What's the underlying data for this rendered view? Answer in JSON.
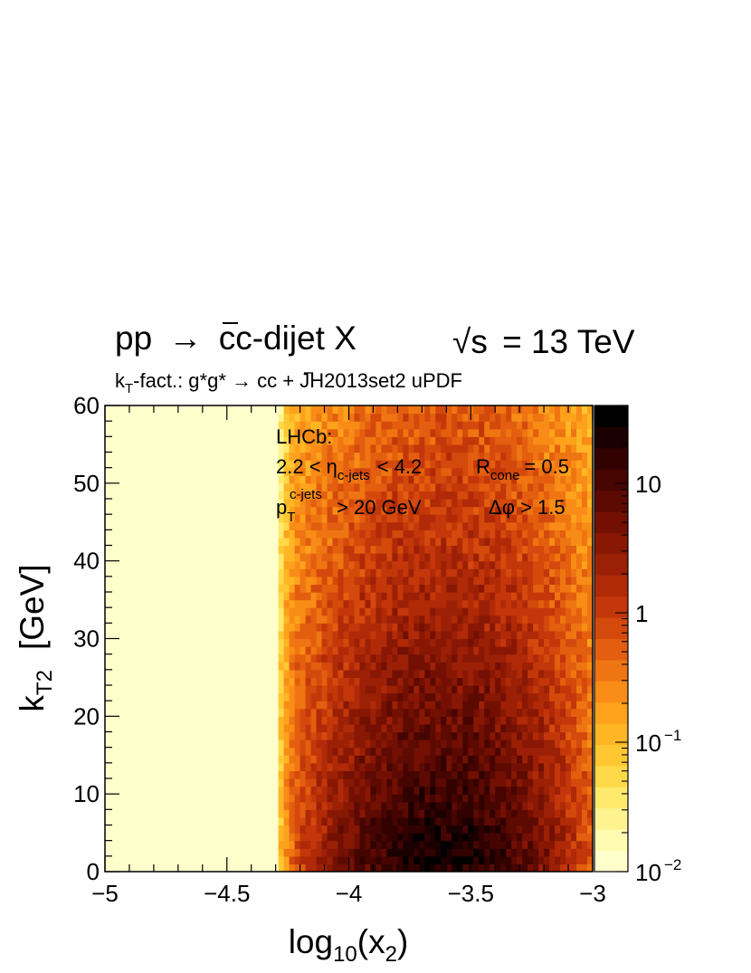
{
  "chart_data": {
    "type": "heatmap",
    "title_parts": {
      "pp": "pp",
      "arrow": "→",
      "c": "c",
      "cbar": "c",
      "suffix": "-dijet X",
      "sqrt": "√",
      "s": "s",
      "energy": "= 13 TeV"
    },
    "subtitle_parts": {
      "k": "k",
      "sub": "T",
      "rest1": "-fact.: g*g* ",
      "arrow": "→",
      "c": " c",
      "cbar": "c",
      "rest2": " + JH2013set2 uPDF"
    },
    "annotations": {
      "line1": "LHCb:",
      "eta_pre": "2.2 < η",
      "eta_sub": "c-jets",
      "eta_post": "< 4.2",
      "rcone": "R",
      "rcone_sub": "cone",
      "rcone_post": "= 0.5",
      "pt": "p",
      "pt_sub": "T",
      "pt_sup": "c-jets",
      "pt_post": "> 20 GeV",
      "dphi": "Δφ > 1.5"
    },
    "xlabel_parts": {
      "pre": "log",
      "sub1": "10",
      "mid": "(x",
      "sub2": "2",
      "post": ")"
    },
    "ylabel_parts": {
      "pre": "k",
      "sub": "T2",
      "post": "[GeV]"
    },
    "xlim": [
      -5,
      -3
    ],
    "ylim": [
      0,
      60
    ],
    "x_ticks": [
      -5,
      -4.5,
      -4,
      -3.5,
      -3
    ],
    "x_tick_labels": [
      "−5",
      "−4.5",
      "−4",
      "−3.5",
      "−3"
    ],
    "y_ticks": [
      0,
      10,
      20,
      30,
      40,
      50,
      60
    ],
    "y_tick_labels": [
      "0",
      "10",
      "20",
      "30",
      "40",
      "50",
      "60"
    ],
    "colorbar": {
      "scale": "log",
      "range": [
        0.01,
        40
      ],
      "tick_labels": [
        {
          "value": 10,
          "base": "10",
          "exp": ""
        },
        {
          "value": 1,
          "base": "1",
          "exp": ""
        },
        {
          "value": 0.1,
          "base": "10",
          "exp": "−1"
        },
        {
          "value": 0.01,
          "base": "10",
          "exp": "−2"
        }
      ],
      "colors": [
        "#ffffcc",
        "#fffbb0",
        "#fff390",
        "#ffe96c",
        "#ffd94a",
        "#ffc832",
        "#ffb524",
        "#fea21c",
        "#f88c16",
        "#ef7512",
        "#e35e0e",
        "#d4490c",
        "#c3370a",
        "#b02a08",
        "#9c2006",
        "#881704",
        "#731003",
        "#5d0a02",
        "#470501",
        "#310200",
        "#1a0000",
        "#000000"
      ]
    },
    "distribution": {
      "description": "2D density of k_T2 vs log10(x2)",
      "peak_x": -3.62,
      "x_min": -4.3,
      "x_max": -3.0,
      "peak_value": 40,
      "peak_y_region": [
        0,
        6
      ]
    }
  }
}
